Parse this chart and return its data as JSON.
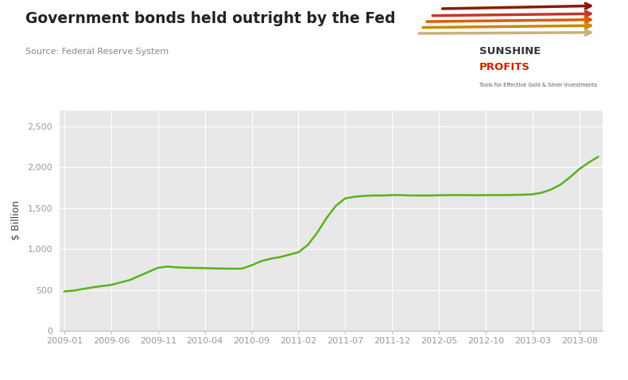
{
  "title": "Government bonds held outright by the Fed",
  "source": "Source: Federal Reserve System",
  "ylabel": "$ Billion",
  "line_color": "#5ab21a",
  "background_color": "#e8e8e8",
  "outer_background": "#ffffff",
  "ylim": [
    0,
    2700
  ],
  "yticks": [
    0,
    500,
    1000,
    1500,
    2000,
    2500
  ],
  "x_labels": [
    "2009-01",
    "2009-06",
    "2009-11",
    "2010-04",
    "2010-09",
    "2011-02",
    "2011-07",
    "2011-12",
    "2012-05",
    "2012-10",
    "2013-03",
    "2013-08"
  ],
  "dates": [
    "2009-01",
    "2009-02",
    "2009-03",
    "2009-04",
    "2009-05",
    "2009-06",
    "2009-07",
    "2009-08",
    "2009-09",
    "2009-10",
    "2009-11",
    "2009-12",
    "2010-01",
    "2010-02",
    "2010-03",
    "2010-04",
    "2010-05",
    "2010-06",
    "2010-07",
    "2010-08",
    "2010-09",
    "2010-10",
    "2010-11",
    "2010-12",
    "2011-01",
    "2011-02",
    "2011-03",
    "2011-04",
    "2011-05",
    "2011-06",
    "2011-07",
    "2011-08",
    "2011-09",
    "2011-10",
    "2011-11",
    "2011-12",
    "2012-01",
    "2012-02",
    "2012-03",
    "2012-04",
    "2012-05",
    "2012-06",
    "2012-07",
    "2012-08",
    "2012-09",
    "2012-10",
    "2012-11",
    "2012-12",
    "2013-01",
    "2013-02",
    "2013-03",
    "2013-04",
    "2013-05",
    "2013-06",
    "2013-07",
    "2013-08",
    "2013-09",
    "2013-10"
  ],
  "values": [
    480,
    490,
    510,
    530,
    545,
    560,
    590,
    620,
    670,
    720,
    770,
    785,
    775,
    770,
    768,
    765,
    762,
    760,
    758,
    760,
    800,
    850,
    880,
    900,
    930,
    960,
    1050,
    1200,
    1380,
    1530,
    1620,
    1640,
    1650,
    1655,
    1655,
    1660,
    1660,
    1655,
    1655,
    1655,
    1658,
    1660,
    1660,
    1660,
    1658,
    1660,
    1660,
    1660,
    1662,
    1665,
    1670,
    1690,
    1730,
    1790,
    1880,
    1980,
    2060,
    2130
  ]
}
